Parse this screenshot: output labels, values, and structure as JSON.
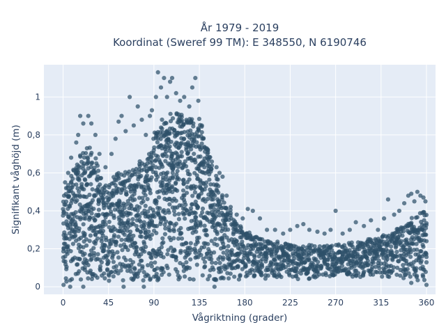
{
  "chart_data": {
    "type": "scatter",
    "title_line1": "År 1979 - 2019",
    "title_line2": "Koordinat (Sweref 99 TM): E 348550, N 6190746",
    "xlabel": "Vågriktning (grader)",
    "ylabel": "Signifikant våghöjd (m)",
    "xlim": [
      -19,
      369
    ],
    "ylim": [
      -0.04,
      1.17
    ],
    "x_ticks": [
      0,
      45,
      90,
      135,
      180,
      225,
      270,
      315,
      360
    ],
    "x_tick_labels": [
      "0",
      "45",
      "90",
      "135",
      "180",
      "225",
      "270",
      "315",
      "360"
    ],
    "y_ticks": [
      0,
      0.2,
      0.4,
      0.6,
      0.8,
      1
    ],
    "y_tick_labels": [
      "0",
      "0,2",
      "0,4",
      "0,6",
      "0,8",
      "1"
    ],
    "grid": true,
    "legend": "none",
    "marker_color": "#2e5169",
    "plot_bg_color": "#e5ecf6",
    "envelope": {
      "description_x_deg": [
        0,
        5,
        10,
        15,
        20,
        25,
        30,
        40,
        50,
        60,
        70,
        80,
        90,
        100,
        110,
        120,
        130,
        135,
        140,
        150,
        160,
        170,
        180,
        190,
        200,
        210,
        220,
        230,
        240,
        250,
        260,
        270,
        280,
        290,
        300,
        310,
        320,
        330,
        340,
        350,
        360
      ],
      "upper_m": [
        0.45,
        0.55,
        0.62,
        0.66,
        0.72,
        0.76,
        0.7,
        0.55,
        0.6,
        0.62,
        0.63,
        0.68,
        0.8,
        0.9,
        0.92,
        0.9,
        0.88,
        0.9,
        0.8,
        0.62,
        0.45,
        0.36,
        0.3,
        0.27,
        0.24,
        0.24,
        0.23,
        0.22,
        0.22,
        0.22,
        0.22,
        0.22,
        0.23,
        0.24,
        0.25,
        0.26,
        0.28,
        0.3,
        0.33,
        0.38,
        0.4
      ],
      "lower_m": [
        0.02,
        0.02,
        0.03,
        0.03,
        0.03,
        0.03,
        0.03,
        0.03,
        0.03,
        0.03,
        0.03,
        0.03,
        0.03,
        0.03,
        0.03,
        0.03,
        0.03,
        0.03,
        0.03,
        0.03,
        0.03,
        0.03,
        0.04,
        0.04,
        0.04,
        0.04,
        0.04,
        0.04,
        0.04,
        0.04,
        0.05,
        0.05,
        0.05,
        0.05,
        0.05,
        0.05,
        0.05,
        0.05,
        0.04,
        0.03,
        0.03
      ]
    },
    "outliers": [
      {
        "x": 17,
        "y": 0.9
      },
      {
        "x": 25,
        "y": 0.9
      },
      {
        "x": 20,
        "y": 0.86
      },
      {
        "x": 28,
        "y": 0.86
      },
      {
        "x": 15,
        "y": 0.8
      },
      {
        "x": 32,
        "y": 0.8
      },
      {
        "x": 13,
        "y": 0.76
      },
      {
        "x": 8,
        "y": 0.68
      },
      {
        "x": 5,
        "y": 0.6
      },
      {
        "x": 2,
        "y": 0.55
      },
      {
        "x": 36,
        "y": 0.7
      },
      {
        "x": 42,
        "y": 0.63
      },
      {
        "x": 48,
        "y": 0.7
      },
      {
        "x": 52,
        "y": 0.78
      },
      {
        "x": 55,
        "y": 0.87
      },
      {
        "x": 58,
        "y": 0.9
      },
      {
        "x": 62,
        "y": 0.82
      },
      {
        "x": 66,
        "y": 1.0
      },
      {
        "x": 70,
        "y": 0.85
      },
      {
        "x": 74,
        "y": 0.95
      },
      {
        "x": 78,
        "y": 0.88
      },
      {
        "x": 82,
        "y": 0.8
      },
      {
        "x": 86,
        "y": 0.9
      },
      {
        "x": 88,
        "y": 0.93
      },
      {
        "x": 92,
        "y": 1.0
      },
      {
        "x": 94,
        "y": 1.13
      },
      {
        "x": 97,
        "y": 1.05
      },
      {
        "x": 100,
        "y": 1.1
      },
      {
        "x": 103,
        "y": 1.0
      },
      {
        "x": 106,
        "y": 1.08
      },
      {
        "x": 108,
        "y": 1.1
      },
      {
        "x": 112,
        "y": 1.02
      },
      {
        "x": 116,
        "y": 0.98
      },
      {
        "x": 120,
        "y": 1.0
      },
      {
        "x": 125,
        "y": 0.95
      },
      {
        "x": 128,
        "y": 1.05
      },
      {
        "x": 131,
        "y": 1.1
      },
      {
        "x": 134,
        "y": 0.98
      },
      {
        "x": 138,
        "y": 0.78
      },
      {
        "x": 143,
        "y": 0.7
      },
      {
        "x": 147,
        "y": 0.62
      },
      {
        "x": 152,
        "y": 0.63
      },
      {
        "x": 155,
        "y": 0.6
      },
      {
        "x": 158,
        "y": 0.58
      },
      {
        "x": 162,
        "y": 0.48
      },
      {
        "x": 166,
        "y": 0.42
      },
      {
        "x": 172,
        "y": 0.38
      },
      {
        "x": 178,
        "y": 0.36
      },
      {
        "x": 183,
        "y": 0.41
      },
      {
        "x": 188,
        "y": 0.4
      },
      {
        "x": 195,
        "y": 0.36
      },
      {
        "x": 202,
        "y": 0.3
      },
      {
        "x": 210,
        "y": 0.3
      },
      {
        "x": 218,
        "y": 0.28
      },
      {
        "x": 225,
        "y": 0.3
      },
      {
        "x": 232,
        "y": 0.32
      },
      {
        "x": 238,
        "y": 0.33
      },
      {
        "x": 244,
        "y": 0.3
      },
      {
        "x": 252,
        "y": 0.29
      },
      {
        "x": 259,
        "y": 0.28
      },
      {
        "x": 265,
        "y": 0.3
      },
      {
        "x": 270,
        "y": 0.4
      },
      {
        "x": 277,
        "y": 0.28
      },
      {
        "x": 284,
        "y": 0.3
      },
      {
        "x": 290,
        "y": 0.34
      },
      {
        "x": 298,
        "y": 0.32
      },
      {
        "x": 305,
        "y": 0.35
      },
      {
        "x": 312,
        "y": 0.3
      },
      {
        "x": 318,
        "y": 0.36
      },
      {
        "x": 322,
        "y": 0.46
      },
      {
        "x": 328,
        "y": 0.38
      },
      {
        "x": 333,
        "y": 0.4
      },
      {
        "x": 338,
        "y": 0.44
      },
      {
        "x": 342,
        "y": 0.48
      },
      {
        "x": 345,
        "y": 0.49
      },
      {
        "x": 348,
        "y": 0.45
      },
      {
        "x": 351,
        "y": 0.5
      },
      {
        "x": 354,
        "y": 0.48
      },
      {
        "x": 357,
        "y": 0.47
      },
      {
        "x": 359,
        "y": 0.45
      },
      {
        "x": 1,
        "y": 0.48
      },
      {
        "x": 3,
        "y": 0.52
      },
      {
        "x": 0.5,
        "y": 0.01
      },
      {
        "x": 7,
        "y": 0.0
      },
      {
        "x": 20,
        "y": 0.0
      },
      {
        "x": 60,
        "y": 0.0
      },
      {
        "x": 80,
        "y": 0.0
      },
      {
        "x": 150,
        "y": 0.0
      },
      {
        "x": 360,
        "y": 0.01
      },
      {
        "x": 345,
        "y": 0.02
      }
    ]
  }
}
